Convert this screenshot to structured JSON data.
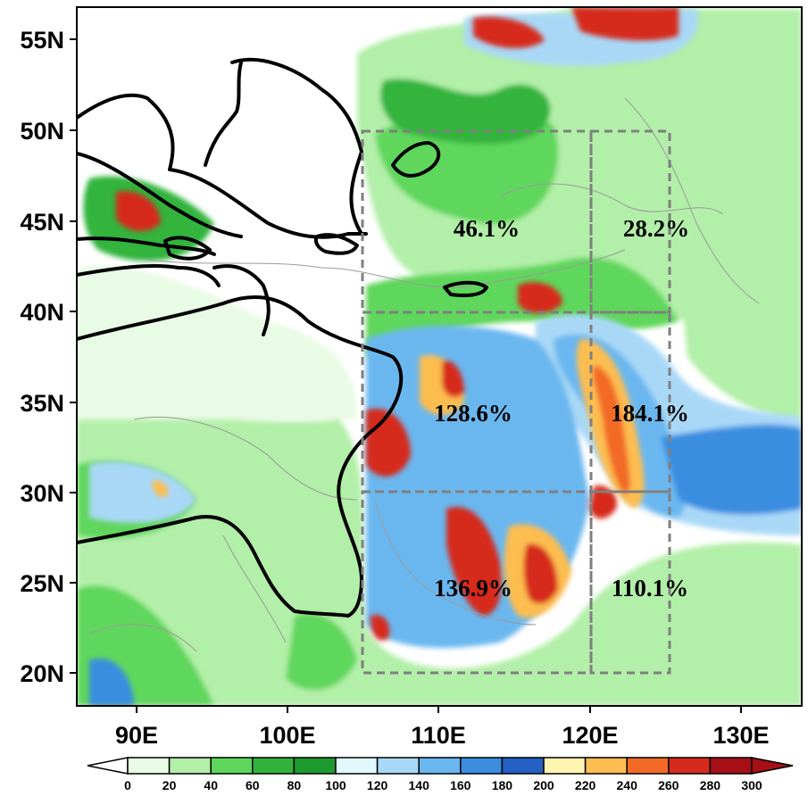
{
  "map": {
    "lat_labels": [
      "55N",
      "50N",
      "45N",
      "40N",
      "35N",
      "30N",
      "25N",
      "20N"
    ],
    "lon_labels": [
      "90E",
      "100E",
      "110E",
      "120E",
      "130E"
    ],
    "regions": [
      {
        "label": "46.1%"
      },
      {
        "label": "28.2%"
      },
      {
        "label": "128.6%"
      },
      {
        "label": "184.1%"
      },
      {
        "label": "136.9%"
      },
      {
        "label": "110.1%"
      }
    ]
  },
  "colorbar": {
    "ticks": [
      "0",
      "20",
      "40",
      "60",
      "80",
      "100",
      "120",
      "140",
      "160",
      "180",
      "200",
      "220",
      "240",
      "260",
      "280",
      "300"
    ],
    "colors": [
      "#ffffff",
      "#e8fbe4",
      "#b2efa8",
      "#5fd65b",
      "#32b43c",
      "#1e9b2f",
      "#e0f8fc",
      "#a9d8f7",
      "#6ab7ef",
      "#3b8de0",
      "#2260c4",
      "#fff5b0",
      "#fdbd50",
      "#f26a26",
      "#d62a1c",
      "#a50f15"
    ]
  }
}
